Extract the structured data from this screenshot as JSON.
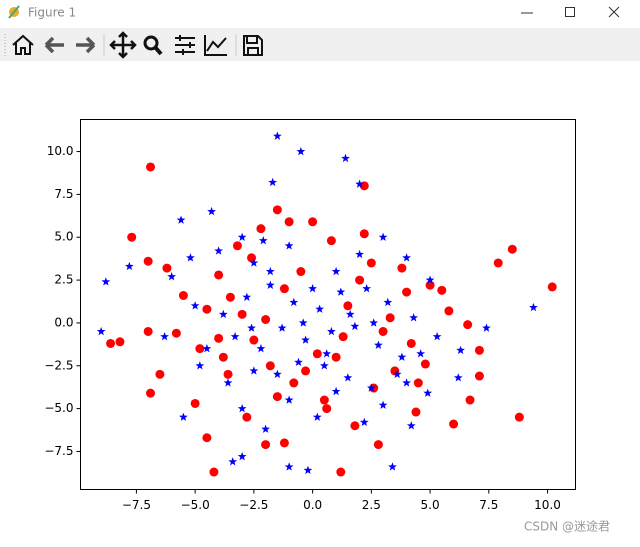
{
  "window_title": "Figure 1",
  "watermark": "CSDN @迷途君",
  "chart_data": {
    "type": "scatter",
    "xlim": [
      -9.88,
      11.19
    ],
    "ylim": [
      -9.72,
      11.87
    ],
    "xticks": [
      {
        "value": -7.5,
        "label": "−7.5"
      },
      {
        "value": -5,
        "label": "−5.0"
      },
      {
        "value": -2.5,
        "label": "−2.5"
      },
      {
        "value": 0,
        "label": "0.0"
      },
      {
        "value": 2.5,
        "label": "2.5"
      },
      {
        "value": 5,
        "label": "5.0"
      },
      {
        "value": 7.5,
        "label": "7.5"
      },
      {
        "value": 10,
        "label": "10.0"
      }
    ],
    "yticks": [
      {
        "value": -7.5,
        "label": "−7.5"
      },
      {
        "value": -5,
        "label": "−5.0"
      },
      {
        "value": -2.5,
        "label": "−2.5"
      },
      {
        "value": 0,
        "label": "0.0"
      },
      {
        "value": 2.5,
        "label": "2.5"
      },
      {
        "value": 5,
        "label": "5.0"
      },
      {
        "value": 7.5,
        "label": "7.5"
      },
      {
        "value": 10,
        "label": "10.0"
      }
    ],
    "grid": false,
    "series": [
      {
        "color": "red",
        "marker": "o",
        "x": [
          -6.9,
          -7.7,
          -8.2,
          -8.6,
          -6.9,
          -4.2,
          1.2,
          8.8,
          10.2,
          8.5,
          7.9,
          2.2,
          -1.5,
          -7.0,
          -6.5,
          -4.5,
          -2.0,
          -1.2,
          2.8,
          6.0,
          6.7,
          7.1,
          7.1,
          6.6,
          5.8,
          0.0,
          -1.0,
          -2.2,
          -5.8,
          -6.2,
          -7.0,
          -4.0,
          -3.5,
          -3.0,
          -2.5,
          -1.8,
          -0.8,
          0.5,
          1.0,
          1.5,
          2.0,
          2.5,
          3.0,
          3.5,
          4.0,
          4.5,
          5.0,
          -5.0,
          -4.8,
          -4.5,
          -3.8,
          -3.2,
          -2.8,
          -2.0,
          -1.5,
          -0.5,
          0.2,
          0.8,
          1.8,
          2.6,
          3.3,
          4.2,
          4.8,
          5.5,
          -5.5,
          -3.6,
          -1.2,
          0.6,
          2.2,
          3.8,
          -0.3,
          1.3,
          -2.6,
          4.4,
          -4.0
        ],
        "y": [
          9.1,
          5.0,
          -1.1,
          -1.2,
          -4.1,
          -8.7,
          -8.7,
          -5.5,
          2.1,
          4.3,
          3.5,
          8.0,
          6.6,
          -0.5,
          -3.0,
          -6.7,
          -7.1,
          -7.0,
          -7.1,
          -5.9,
          -4.5,
          -1.6,
          -3.1,
          -0.1,
          0.7,
          5.9,
          5.9,
          5.5,
          -0.6,
          3.2,
          3.6,
          2.8,
          1.5,
          0.5,
          -1.0,
          -2.5,
          -3.5,
          -4.5,
          -2.0,
          1.0,
          2.5,
          3.5,
          -0.5,
          -2.8,
          1.8,
          -3.5,
          2.2,
          -4.7,
          -1.5,
          0.8,
          -2.0,
          4.5,
          -5.5,
          0.2,
          -4.3,
          3.0,
          -1.8,
          4.8,
          -6.0,
          -3.8,
          0.3,
          -1.2,
          -2.4,
          1.9,
          1.6,
          -3.0,
          2.0,
          -5.0,
          5.2,
          3.2,
          -2.8,
          -0.8,
          3.8,
          -5.2,
          -0.9
        ]
      },
      {
        "color": "blue",
        "marker": "*",
        "x": [
          -1.5,
          -0.5,
          1.4,
          -1.7,
          2.0,
          -8.8,
          -9.0,
          -7.8,
          9.4,
          7.4,
          -3.4,
          -3.0,
          -1.0,
          -0.2,
          3.4,
          4.9,
          6.3,
          6.2,
          -5.6,
          -2.1,
          -4.3,
          -6.0,
          -5.2,
          -4.0,
          -3.0,
          -2.5,
          -1.0,
          0.0,
          1.0,
          2.0,
          3.0,
          4.0,
          5.0,
          -5.0,
          -3.8,
          -2.8,
          -1.8,
          -0.8,
          0.3,
          1.2,
          2.3,
          3.2,
          4.3,
          5.3,
          -4.5,
          -3.3,
          -2.2,
          -1.3,
          -0.3,
          0.8,
          1.8,
          2.8,
          3.8,
          4.6,
          -6.3,
          -4.8,
          -3.6,
          -2.5,
          -1.5,
          -0.6,
          0.5,
          1.5,
          2.5,
          3.6,
          -5.5,
          -2.0,
          0.2,
          2.2,
          4.2,
          -1.0,
          1.0,
          3.0,
          -3.0,
          -0.4,
          1.6,
          -2.6,
          0.6,
          2.6,
          -1.8,
          4.0
        ],
        "y": [
          10.9,
          10.0,
          9.6,
          8.2,
          8.1,
          2.4,
          -0.5,
          3.3,
          0.9,
          -0.3,
          -8.1,
          -7.8,
          -8.4,
          -8.6,
          -8.4,
          -4.1,
          -1.6,
          -3.2,
          6.0,
          4.8,
          6.5,
          2.7,
          3.8,
          4.2,
          5.0,
          3.5,
          4.5,
          2.0,
          3.0,
          4.0,
          5.0,
          3.8,
          2.5,
          1.0,
          0.5,
          1.5,
          2.2,
          1.2,
          0.8,
          1.8,
          2.0,
          1.2,
          0.3,
          -0.8,
          -1.5,
          -0.8,
          -1.5,
          -0.3,
          -1.0,
          -0.5,
          -0.2,
          -1.3,
          -2.0,
          -1.8,
          -0.8,
          -2.5,
          -3.5,
          -2.8,
          -3.0,
          -2.3,
          -2.5,
          -3.2,
          -3.8,
          -3.0,
          -5.5,
          -6.2,
          -5.5,
          -5.8,
          -6.0,
          -4.5,
          -4.0,
          -4.8,
          -5.0,
          0.0,
          0.5,
          -0.3,
          -1.8,
          0.0,
          3.0,
          -3.5
        ]
      }
    ]
  }
}
